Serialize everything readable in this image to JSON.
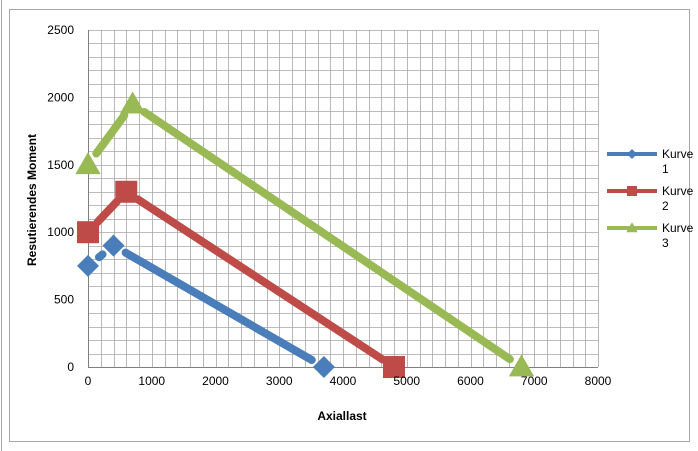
{
  "chart_data": {
    "type": "line",
    "title": "",
    "xlabel": "Axiallast",
    "ylabel": "Resutierendes Moment",
    "xlim": [
      0,
      8000
    ],
    "ylim": [
      0,
      2500
    ],
    "x_ticks": [
      0,
      1000,
      2000,
      3000,
      4000,
      5000,
      6000,
      7000,
      8000
    ],
    "y_ticks": [
      0,
      500,
      1000,
      1500,
      2000,
      2500
    ],
    "grid": true,
    "legend_position": "right",
    "series": [
      {
        "name": "Kurve 1",
        "label_lines": [
          "Kurve",
          "1"
        ],
        "color": "#4a7ebb",
        "marker": "diamond",
        "points": [
          [
            0,
            750
          ],
          [
            400,
            900
          ],
          [
            3700,
            0
          ]
        ]
      },
      {
        "name": "Kurve 2",
        "label_lines": [
          "Kurve",
          "2"
        ],
        "color": "#be4b48",
        "marker": "square",
        "points": [
          [
            0,
            1000
          ],
          [
            600,
            1300
          ],
          [
            4800,
            0
          ]
        ]
      },
      {
        "name": "Kurve 3",
        "label_lines": [
          "Kurve",
          "3"
        ],
        "color": "#98b954",
        "marker": "triangle",
        "points": [
          [
            0,
            1500
          ],
          [
            700,
            1950
          ],
          [
            6800,
            0
          ]
        ]
      }
    ]
  }
}
